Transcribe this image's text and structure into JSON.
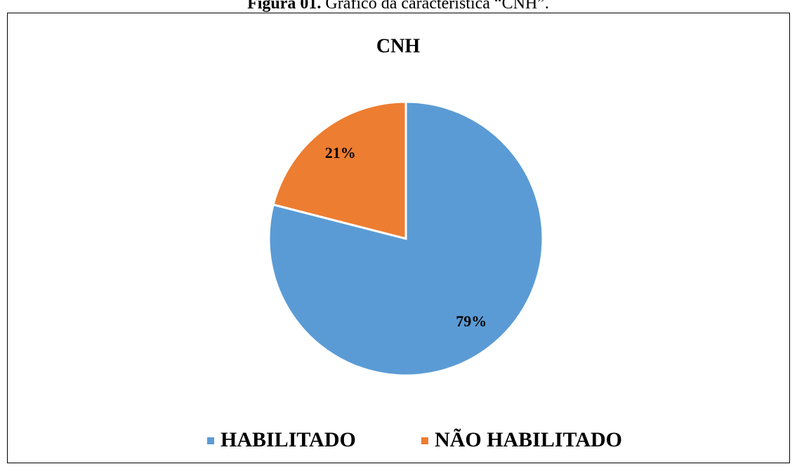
{
  "caption_label": "Figura 01.",
  "caption_text": "Gráfico da característica “CNH”.",
  "chart_data": {
    "type": "pie",
    "title": "CNH",
    "categories": [
      "HABILITADO",
      "NÃO HABILITADO"
    ],
    "values": [
      79,
      21
    ],
    "value_labels": [
      "79%",
      "21%"
    ],
    "colors": [
      "#5b9bd5",
      "#ed7d31"
    ],
    "legend": "bottom"
  }
}
